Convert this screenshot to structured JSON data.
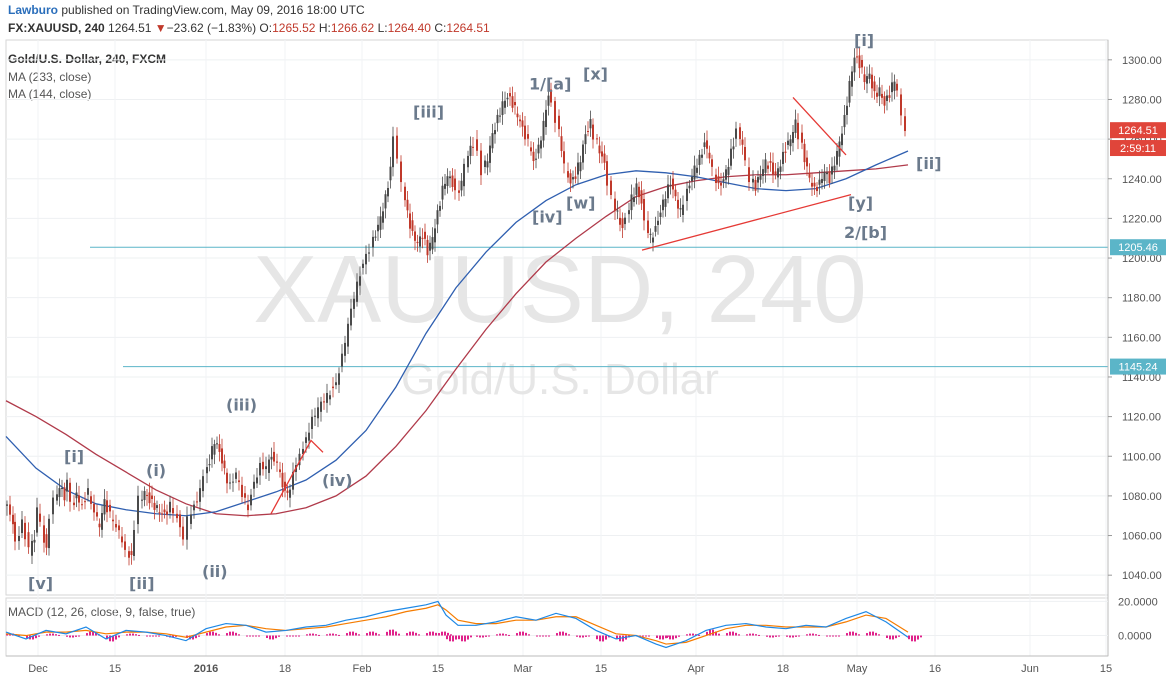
{
  "header": {
    "author": "Lawburo",
    "published_text": "published on TradingView.com, May 09, 2016 18:00 UTC",
    "symbol": "FX:XAUUSD, 240",
    "last": "1264.51",
    "change": "▼",
    "change_text": "−23.62 (−1.83%)",
    "o_label": "O:",
    "o": "1265.52",
    "h_label": "H:",
    "h": "1266.62",
    "l_label": "L:",
    "l": "1264.40",
    "c_label": "C:",
    "c": "1264.51"
  },
  "legend": {
    "title": "Gold/U.S. Dollar, 240, FXCM",
    "ma1": "MA (233, close)",
    "ma2": "MA (144, close)",
    "macd": "MACD (12, 26, close, 9, false, true)"
  },
  "watermark": {
    "symbol": "XAUUSD, 240",
    "name": "Gold/U.S. Dollar"
  },
  "colors": {
    "up": "#4a4a4a",
    "down": "#c0392b",
    "ma233": "#b03a4a",
    "ma144": "#2f5fb0",
    "macd": "#1e88e5",
    "signal": "#f57c00",
    "hist": "#e0218a",
    "hline": "#5bb5c8",
    "trend": "#e53935",
    "badge_price": "#e0453a",
    "badge_level": "#5bb5c8"
  },
  "chart_data": {
    "type": "line",
    "instrument": "XAUUSD",
    "timeframe": "240",
    "ylim": [
      1030,
      1310
    ],
    "y_ticks": [
      1040,
      1060,
      1080,
      1100,
      1120,
      1140,
      1160,
      1180,
      1200,
      1220,
      1240,
      1260,
      1280,
      1300
    ],
    "x_ticks": [
      "Dec",
      "15",
      "2016",
      "18",
      "Feb",
      "15",
      "Mar",
      "15",
      "Apr",
      "18",
      "May",
      "16",
      "Jun",
      "15"
    ],
    "x": [
      "2015-11-30",
      "2015-12-15",
      "2016-01-04",
      "2016-01-18",
      "2016-02-01",
      "2016-02-15",
      "2016-03-01",
      "2016-03-15",
      "2016-04-01",
      "2016-04-18",
      "2016-05-02",
      "2016-05-16",
      "2016-06-01",
      "2016-06-15"
    ],
    "price_path": [
      [
        0,
        1075
      ],
      [
        6,
        1072
      ],
      [
        8,
        1065
      ],
      [
        12,
        1055
      ],
      [
        18,
        1068
      ],
      [
        25,
        1052
      ],
      [
        30,
        1060
      ],
      [
        33,
        1072
      ],
      [
        37,
        1065
      ],
      [
        42,
        1052
      ],
      [
        46,
        1070
      ],
      [
        50,
        1078
      ],
      [
        55,
        1085
      ],
      [
        60,
        1080
      ],
      [
        63,
        1086
      ],
      [
        67,
        1075
      ],
      [
        72,
        1080
      ],
      [
        78,
        1076
      ],
      [
        84,
        1082
      ],
      [
        90,
        1070
      ],
      [
        95,
        1065
      ],
      [
        100,
        1077
      ],
      [
        106,
        1070
      ],
      [
        112,
        1063
      ],
      [
        118,
        1058
      ],
      [
        122,
        1052
      ],
      [
        127,
        1048
      ],
      [
        131,
        1065
      ],
      [
        135,
        1078
      ],
      [
        140,
        1082
      ],
      [
        145,
        1078
      ],
      [
        150,
        1075
      ],
      [
        155,
        1072
      ],
      [
        160,
        1070
      ],
      [
        166,
        1075
      ],
      [
        170,
        1071
      ],
      [
        176,
        1066
      ],
      [
        180,
        1060
      ],
      [
        184,
        1068
      ],
      [
        190,
        1076
      ],
      [
        196,
        1082
      ],
      [
        200,
        1090
      ],
      [
        205,
        1098
      ],
      [
        210,
        1108
      ],
      [
        215,
        1102
      ],
      [
        220,
        1092
      ],
      [
        226,
        1085
      ],
      [
        232,
        1090
      ],
      [
        238,
        1080
      ],
      [
        244,
        1075
      ],
      [
        250,
        1088
      ],
      [
        256,
        1095
      ],
      [
        262,
        1093
      ],
      [
        267,
        1100
      ],
      [
        273,
        1095
      ],
      [
        278,
        1085
      ],
      [
        283,
        1080
      ],
      [
        289,
        1090
      ],
      [
        296,
        1100
      ],
      [
        302,
        1110
      ],
      [
        308,
        1118
      ],
      [
        314,
        1123
      ],
      [
        320,
        1128
      ],
      [
        326,
        1133
      ],
      [
        332,
        1138
      ],
      [
        338,
        1150
      ],
      [
        344,
        1165
      ],
      [
        350,
        1180
      ],
      [
        356,
        1193
      ],
      [
        362,
        1203
      ],
      [
        366,
        1205
      ],
      [
        371,
        1212
      ],
      [
        376,
        1220
      ],
      [
        381,
        1230
      ],
      [
        386,
        1245
      ],
      [
        390,
        1262
      ],
      [
        394,
        1250
      ],
      [
        398,
        1238
      ],
      [
        403,
        1222
      ],
      [
        408,
        1212
      ],
      [
        413,
        1208
      ],
      [
        418,
        1212
      ],
      [
        423,
        1203
      ],
      [
        428,
        1210
      ],
      [
        433,
        1222
      ],
      [
        438,
        1235
      ],
      [
        443,
        1242
      ],
      [
        448,
        1238
      ],
      [
        452,
        1232
      ],
      [
        457,
        1238
      ],
      [
        461,
        1248
      ],
      [
        466,
        1255
      ],
      [
        470,
        1258
      ],
      [
        474,
        1252
      ],
      [
        478,
        1244
      ],
      [
        483,
        1250
      ],
      [
        488,
        1262
      ],
      [
        493,
        1270
      ],
      [
        498,
        1278
      ],
      [
        503,
        1282
      ],
      [
        508,
        1278
      ],
      [
        513,
        1272
      ],
      [
        518,
        1265
      ],
      [
        524,
        1258
      ],
      [
        529,
        1248
      ],
      [
        534,
        1255
      ],
      [
        539,
        1268
      ],
      [
        544,
        1283
      ],
      [
        548,
        1277
      ],
      [
        552,
        1270
      ],
      [
        557,
        1256
      ],
      [
        561,
        1246
      ],
      [
        566,
        1238
      ],
      [
        571,
        1242
      ],
      [
        576,
        1250
      ],
      [
        581,
        1262
      ],
      [
        586,
        1268
      ],
      [
        590,
        1262
      ],
      [
        595,
        1254
      ],
      [
        600,
        1247
      ],
      [
        604,
        1238
      ],
      [
        608,
        1230
      ],
      [
        613,
        1222
      ],
      [
        618,
        1215
      ],
      [
        622,
        1220
      ],
      [
        627,
        1230
      ],
      [
        632,
        1236
      ],
      [
        637,
        1228
      ],
      [
        641,
        1218
      ],
      [
        646,
        1210
      ],
      [
        651,
        1215
      ],
      [
        656,
        1224
      ],
      [
        661,
        1232
      ],
      [
        666,
        1238
      ],
      [
        671,
        1230
      ],
      [
        676,
        1223
      ],
      [
        680,
        1229
      ],
      [
        685,
        1237
      ],
      [
        690,
        1245
      ],
      [
        695,
        1250
      ],
      [
        700,
        1258
      ],
      [
        705,
        1252
      ],
      [
        709,
        1244
      ],
      [
        714,
        1236
      ],
      [
        719,
        1240
      ],
      [
        724,
        1248
      ],
      [
        729,
        1258
      ],
      [
        733,
        1264
      ],
      [
        738,
        1258
      ],
      [
        742,
        1248
      ],
      [
        746,
        1240
      ],
      [
        751,
        1236
      ],
      [
        756,
        1242
      ],
      [
        761,
        1248
      ],
      [
        766,
        1246
      ],
      [
        771,
        1242
      ],
      [
        776,
        1248
      ],
      [
        781,
        1255
      ],
      [
        786,
        1260
      ],
      [
        791,
        1268
      ],
      [
        795,
        1262
      ],
      [
        800,
        1250
      ],
      [
        805,
        1240
      ],
      [
        810,
        1234
      ],
      [
        815,
        1238
      ],
      [
        820,
        1244
      ],
      [
        825,
        1240
      ],
      [
        830,
        1248
      ],
      [
        835,
        1258
      ],
      [
        840,
        1270
      ],
      [
        845,
        1288
      ],
      [
        850,
        1302
      ],
      [
        855,
        1298
      ],
      [
        860,
        1290
      ],
      [
        865,
        1292
      ],
      [
        870,
        1282
      ],
      [
        875,
        1285
      ],
      [
        880,
        1278
      ],
      [
        885,
        1283
      ],
      [
        890,
        1290
      ],
      [
        894,
        1284
      ],
      [
        898,
        1272
      ],
      [
        902,
        1264.51
      ]
    ],
    "ma144_path": [
      [
        0,
        1110
      ],
      [
        30,
        1094
      ],
      [
        60,
        1083
      ],
      [
        90,
        1076
      ],
      [
        120,
        1073
      ],
      [
        150,
        1071
      ],
      [
        180,
        1070
      ],
      [
        210,
        1072
      ],
      [
        240,
        1077
      ],
      [
        270,
        1082
      ],
      [
        300,
        1088
      ],
      [
        330,
        1098
      ],
      [
        360,
        1113
      ],
      [
        390,
        1135
      ],
      [
        420,
        1162
      ],
      [
        450,
        1185
      ],
      [
        480,
        1203
      ],
      [
        510,
        1218
      ],
      [
        540,
        1229
      ],
      [
        570,
        1237
      ],
      [
        600,
        1242
      ],
      [
        630,
        1244
      ],
      [
        660,
        1243
      ],
      [
        690,
        1241
      ],
      [
        720,
        1238
      ],
      [
        750,
        1235
      ],
      [
        780,
        1234
      ],
      [
        810,
        1235
      ],
      [
        840,
        1240
      ],
      [
        870,
        1247
      ],
      [
        902,
        1254
      ]
    ],
    "ma233_path": [
      [
        0,
        1128
      ],
      [
        30,
        1120
      ],
      [
        60,
        1111
      ],
      [
        90,
        1101
      ],
      [
        120,
        1092
      ],
      [
        150,
        1083
      ],
      [
        180,
        1076
      ],
      [
        210,
        1071
      ],
      [
        240,
        1070
      ],
      [
        270,
        1071
      ],
      [
        300,
        1074
      ],
      [
        330,
        1080
      ],
      [
        360,
        1090
      ],
      [
        390,
        1105
      ],
      [
        420,
        1123
      ],
      [
        450,
        1144
      ],
      [
        480,
        1164
      ],
      [
        510,
        1182
      ],
      [
        540,
        1198
      ],
      [
        570,
        1210
      ],
      [
        600,
        1221
      ],
      [
        630,
        1231
      ],
      [
        660,
        1236
      ],
      [
        690,
        1239
      ],
      [
        720,
        1241
      ],
      [
        750,
        1242
      ],
      [
        780,
        1242
      ],
      [
        810,
        1243
      ],
      [
        840,
        1244
      ],
      [
        870,
        1245
      ],
      [
        902,
        1247
      ]
    ],
    "hlines": [
      {
        "label": "1205.46",
        "value": 1205.46
      },
      {
        "label": "1145.24",
        "value": 1145.24
      }
    ],
    "price_badges": [
      {
        "label": "1264.51",
        "value": 1264.51
      },
      {
        "label": "2:59:11",
        "value": 1255.5
      }
    ],
    "trendlines": [
      [
        [
          265,
          1071
        ],
        [
          305,
          1108
        ],
        [
          317,
          1102
        ]
      ],
      [
        [
          636,
          1204
        ],
        [
          845,
          1232
        ]
      ],
      [
        [
          787,
          1281
        ],
        [
          840,
          1252
        ]
      ]
    ],
    "wave_labels": [
      {
        "text": "[v]",
        "x": 22,
        "y": 1033
      },
      {
        "text": "[i]",
        "x": 58,
        "y": 1097
      },
      {
        "text": "[ii]",
        "x": 123,
        "y": 1033
      },
      {
        "text": "(i)",
        "x": 140,
        "y": 1090
      },
      {
        "text": "(ii)",
        "x": 196,
        "y": 1039
      },
      {
        "text": "(iii)",
        "x": 220,
        "y": 1123
      },
      {
        "text": "(iv)",
        "x": 316,
        "y": 1085
      },
      {
        "text": "[iii]",
        "x": 407,
        "y": 1271
      },
      {
        "text": "[iv]",
        "x": 526,
        "y": 1218
      },
      {
        "text": "1/[a]",
        "x": 523,
        "y": 1285
      },
      {
        "text": "[x]",
        "x": 577,
        "y": 1290
      },
      {
        "text": "[w]",
        "x": 560,
        "y": 1225
      },
      {
        "text": "[i]",
        "x": 848,
        "y": 1307
      },
      {
        "text": "[ii]",
        "x": 910,
        "y": 1245
      },
      {
        "text": "[y]",
        "x": 842,
        "y": 1225
      },
      {
        "text": "2/[b]",
        "x": 838,
        "y": 1210
      }
    ],
    "macd_ylim": [
      -12,
      22
    ],
    "macd_ticks": [
      20,
      0
    ],
    "macd_tick_labels": [
      "20.0000",
      "0.0000"
    ],
    "macd_path": [
      [
        0,
        2
      ],
      [
        20,
        -2
      ],
      [
        40,
        3
      ],
      [
        60,
        1
      ],
      [
        80,
        5
      ],
      [
        100,
        -2
      ],
      [
        120,
        3
      ],
      [
        140,
        2
      ],
      [
        160,
        0
      ],
      [
        180,
        -3
      ],
      [
        200,
        4
      ],
      [
        220,
        7
      ],
      [
        240,
        6
      ],
      [
        260,
        2
      ],
      [
        280,
        3
      ],
      [
        300,
        5
      ],
      [
        320,
        6
      ],
      [
        340,
        9
      ],
      [
        360,
        11
      ],
      [
        380,
        14
      ],
      [
        400,
        16
      ],
      [
        420,
        18
      ],
      [
        432,
        20
      ],
      [
        440,
        12
      ],
      [
        452,
        6
      ],
      [
        470,
        6
      ],
      [
        490,
        8
      ],
      [
        510,
        11
      ],
      [
        530,
        9
      ],
      [
        550,
        13
      ],
      [
        570,
        10
      ],
      [
        590,
        3
      ],
      [
        610,
        -2
      ],
      [
        630,
        0
      ],
      [
        650,
        -5
      ],
      [
        660,
        -7
      ],
      [
        680,
        -3
      ],
      [
        700,
        3
      ],
      [
        720,
        6
      ],
      [
        740,
        7
      ],
      [
        760,
        5
      ],
      [
        780,
        4
      ],
      [
        800,
        6
      ],
      [
        820,
        5
      ],
      [
        840,
        10
      ],
      [
        860,
        14
      ],
      [
        880,
        8
      ],
      [
        902,
        -1
      ]
    ],
    "signal_path": [
      [
        0,
        1
      ],
      [
        20,
        0
      ],
      [
        40,
        2
      ],
      [
        60,
        2
      ],
      [
        80,
        3
      ],
      [
        100,
        1
      ],
      [
        120,
        2
      ],
      [
        140,
        2
      ],
      [
        160,
        1
      ],
      [
        180,
        -1
      ],
      [
        200,
        2
      ],
      [
        220,
        5
      ],
      [
        240,
        6
      ],
      [
        260,
        4
      ],
      [
        280,
        3
      ],
      [
        300,
        4
      ],
      [
        320,
        5
      ],
      [
        340,
        7
      ],
      [
        360,
        9
      ],
      [
        380,
        11
      ],
      [
        400,
        14
      ],
      [
        420,
        16
      ],
      [
        432,
        18
      ],
      [
        440,
        15
      ],
      [
        452,
        9
      ],
      [
        470,
        7
      ],
      [
        490,
        7
      ],
      [
        510,
        9
      ],
      [
        530,
        9
      ],
      [
        550,
        11
      ],
      [
        570,
        11
      ],
      [
        590,
        6
      ],
      [
        610,
        1
      ],
      [
        630,
        0
      ],
      [
        650,
        -3
      ],
      [
        660,
        -5
      ],
      [
        680,
        -4
      ],
      [
        700,
        0
      ],
      [
        720,
        4
      ],
      [
        740,
        6
      ],
      [
        760,
        6
      ],
      [
        780,
        5
      ],
      [
        800,
        5
      ],
      [
        820,
        5
      ],
      [
        840,
        8
      ],
      [
        860,
        12
      ],
      [
        880,
        10
      ],
      [
        902,
        2
      ]
    ]
  }
}
